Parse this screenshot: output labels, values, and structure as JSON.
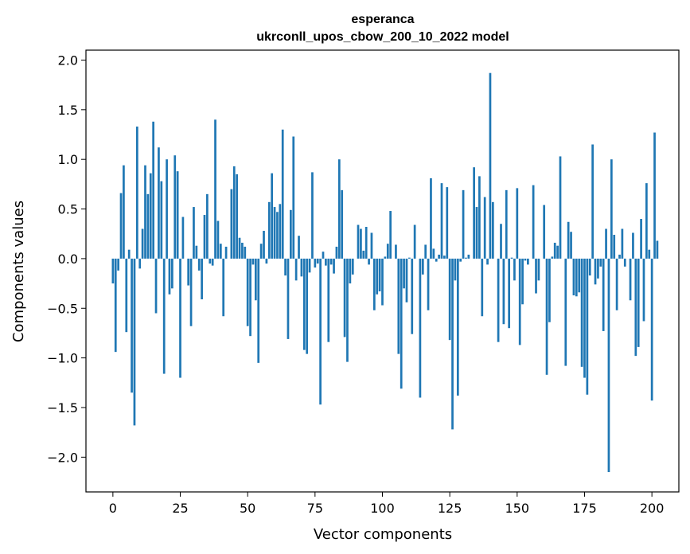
{
  "chart_data": {
    "type": "bar",
    "title_line1": "esperanca",
    "title_line2": "ukrconll_upos_cbow_200_10_2022 model",
    "xlabel": "Vector components",
    "ylabel": "Components values",
    "xlim": [
      -10,
      210
    ],
    "ylim": [
      -2.35,
      2.1
    ],
    "xticks": [
      0,
      25,
      50,
      75,
      100,
      125,
      150,
      175,
      200
    ],
    "yticks": [
      -2.0,
      -1.5,
      -1.0,
      -0.5,
      0.0,
      0.5,
      1.0,
      1.5,
      2.0
    ],
    "ytick_labels": [
      "−2.0",
      "−1.5",
      "−1.0",
      "−0.5",
      "0.0",
      "0.5",
      "1.0",
      "1.5",
      "2.0"
    ],
    "bar_color": "#1f77b4",
    "grid": false,
    "values": [
      -0.25,
      -0.94,
      -0.12,
      0.66,
      0.94,
      -0.74,
      0.09,
      -1.35,
      -1.68,
      1.33,
      -0.1,
      0.3,
      0.94,
      0.65,
      0.86,
      1.38,
      -0.55,
      1.12,
      0.78,
      -1.16,
      1.0,
      -0.36,
      -0.3,
      1.04,
      0.88,
      -1.2,
      0.42,
      0.0,
      -0.27,
      -0.68,
      0.52,
      0.13,
      -0.12,
      -0.41,
      0.44,
      0.65,
      -0.05,
      -0.07,
      1.4,
      0.38,
      0.15,
      -0.58,
      0.12,
      0.0,
      0.7,
      0.93,
      0.85,
      0.21,
      0.16,
      0.12,
      -0.68,
      -0.78,
      -0.06,
      -0.42,
      -1.05,
      0.15,
      0.28,
      -0.05,
      0.57,
      0.86,
      0.52,
      0.47,
      0.55,
      1.3,
      -0.17,
      -0.81,
      0.49,
      1.23,
      -0.22,
      0.23,
      -0.18,
      -0.92,
      -0.96,
      -0.14,
      0.87,
      -0.09,
      -0.05,
      -1.47,
      0.07,
      -0.07,
      -0.84,
      -0.06,
      -0.15,
      0.12,
      1.0,
      0.69,
      -0.79,
      -1.04,
      -0.25,
      -0.16,
      0.0,
      0.34,
      0.3,
      0.08,
      0.32,
      -0.06,
      0.26,
      -0.52,
      -0.36,
      -0.33,
      -0.47,
      0.02,
      0.15,
      0.48,
      0.0,
      0.14,
      -0.96,
      -1.31,
      -0.3,
      -0.44,
      0.01,
      -0.76,
      0.34,
      0.0,
      -1.4,
      -0.16,
      0.14,
      -0.52,
      0.81,
      0.1,
      -0.03,
      0.04,
      0.76,
      0.03,
      0.72,
      -0.82,
      -1.72,
      -0.22,
      -1.38,
      -0.03,
      0.69,
      0.01,
      0.04,
      0.0,
      0.92,
      0.52,
      0.83,
      -0.58,
      0.62,
      -0.06,
      1.87,
      0.57,
      0.0,
      -0.84,
      0.35,
      -0.66,
      0.69,
      -0.7,
      0.01,
      -0.22,
      0.71,
      -0.87,
      -0.46,
      -0.02,
      -0.06,
      0.0,
      0.74,
      -0.35,
      -0.22,
      0.0,
      0.54,
      -1.17,
      -0.64,
      0.02,
      0.16,
      0.13,
      1.03,
      0.0,
      -1.08,
      0.37,
      0.27,
      -0.37,
      -0.38,
      -0.34,
      -1.09,
      -1.2,
      -1.37,
      -0.17,
      1.15,
      -0.26,
      -0.2,
      -0.08,
      -0.73,
      0.3,
      -2.15,
      1.0,
      0.24,
      -0.52,
      0.04,
      0.3,
      -0.08,
      0.0,
      -0.42,
      0.26,
      -0.98,
      -0.89,
      0.4,
      -0.63,
      0.76,
      0.09,
      -1.43,
      1.27,
      0.18
    ]
  }
}
